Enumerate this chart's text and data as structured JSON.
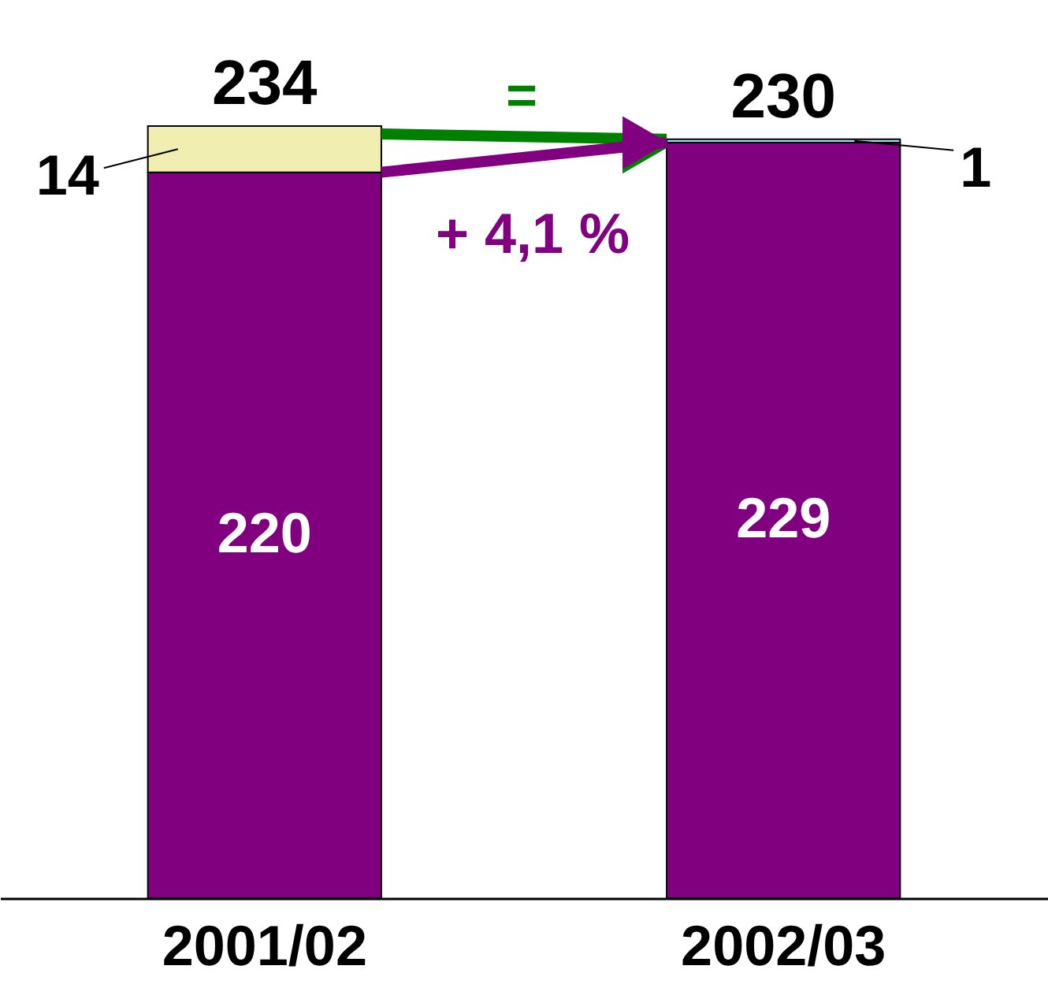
{
  "chart_data": {
    "type": "bar",
    "stacked": true,
    "categories": [
      "2001/02",
      "2002/03"
    ],
    "series": [
      {
        "color": "#800080",
        "values": [
          220,
          229
        ]
      },
      {
        "colors": [
          "#f0eeb0",
          "#a0dcf5"
        ],
        "values": [
          14,
          1
        ]
      }
    ],
    "data_labels": true,
    "totals": [
      "234",
      "230"
    ],
    "annotations": [
      "=",
      "+ 4,1 %"
    ]
  }
}
